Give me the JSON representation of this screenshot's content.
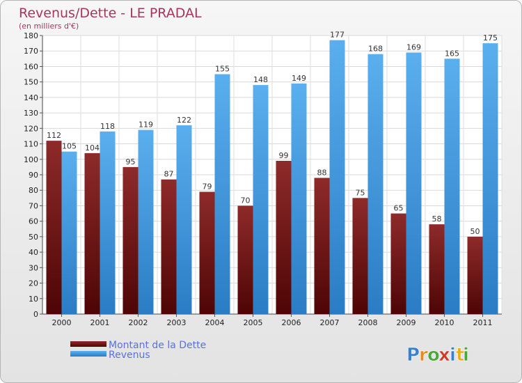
{
  "chart_data": {
    "type": "bar",
    "title": "Revenus/Dette - LE PRADAL",
    "subtitle": "(en milliers d'€)",
    "categories": [
      "2000",
      "2001",
      "2002",
      "2003",
      "2004",
      "2005",
      "2006",
      "2007",
      "2008",
      "2009",
      "2010",
      "2011"
    ],
    "series": [
      {
        "name": "Montant de la Dette",
        "color": "#7a1a1a",
        "values": [
          112,
          104,
          95,
          87,
          79,
          70,
          99,
          88,
          75,
          65,
          58,
          50
        ]
      },
      {
        "name": "Revenus",
        "color": "#4ea3e6",
        "values": [
          105,
          118,
          119,
          122,
          155,
          148,
          149,
          177,
          168,
          169,
          165,
          175
        ]
      }
    ],
    "ylim": [
      0,
      180
    ],
    "yticks": [
      0,
      10,
      20,
      30,
      40,
      50,
      60,
      70,
      80,
      90,
      100,
      110,
      120,
      130,
      140,
      150,
      160,
      170,
      180
    ],
    "grid": true,
    "legend_position": "bottom-left"
  },
  "logo": {
    "letters": [
      "P",
      "r",
      "o",
      "x",
      "i",
      "t",
      "i"
    ],
    "colors": [
      "#3a7fd0",
      "#e88a1a",
      "#4aa83a",
      "#d03a2a",
      "#3a7fd0",
      "#e8b01a",
      "#4aa83a"
    ]
  }
}
